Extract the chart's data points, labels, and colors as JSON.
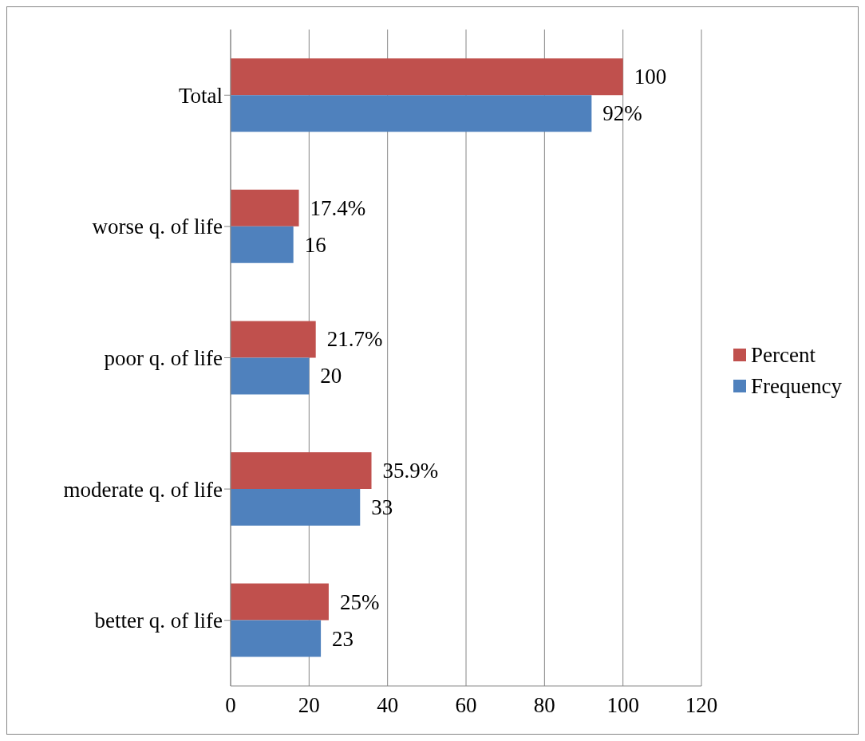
{
  "chart_data": {
    "type": "bar",
    "orientation": "horizontal",
    "categories": [
      "Total",
      "worse q. of life",
      "poor q. of life",
      "moderate q. of life",
      "better q. of life"
    ],
    "series": [
      {
        "name": "Percent",
        "color": "#c0504d",
        "values": [
          100,
          17.4,
          21.7,
          35.9,
          25
        ],
        "value_labels": [
          "100",
          "17.4%",
          "21.7%",
          "35.9%",
          "25%"
        ]
      },
      {
        "name": "Frequency",
        "color": "#4f81bd",
        "values": [
          92,
          16,
          20,
          33,
          23
        ],
        "value_labels": [
          "92%",
          "16",
          "20",
          "33",
          "23"
        ]
      }
    ],
    "xlim": [
      0,
      120
    ],
    "xticks": [
      0,
      20,
      40,
      60,
      80,
      100,
      120
    ],
    "grid": "x",
    "legend": "right"
  }
}
